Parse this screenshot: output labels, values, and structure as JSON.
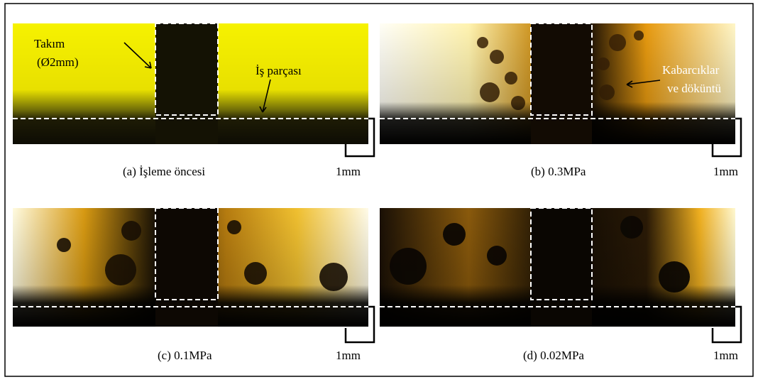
{
  "panels": [
    {
      "caption": "(a) İşleme öncesi",
      "scale": "1mm"
    },
    {
      "caption": "(b) 0.3MPa",
      "scale": "1mm"
    },
    {
      "caption": "(c) 0.1MPa",
      "scale": "1mm"
    },
    {
      "caption": "(d) 0.02MPa",
      "scale": "1mm"
    }
  ],
  "annotations": {
    "tool": "Takım",
    "tool_size": "(Ø2mm)",
    "workpiece": "İş parçası",
    "bubbles": "Kabarcıklar",
    "debris": "ve döküntü"
  }
}
